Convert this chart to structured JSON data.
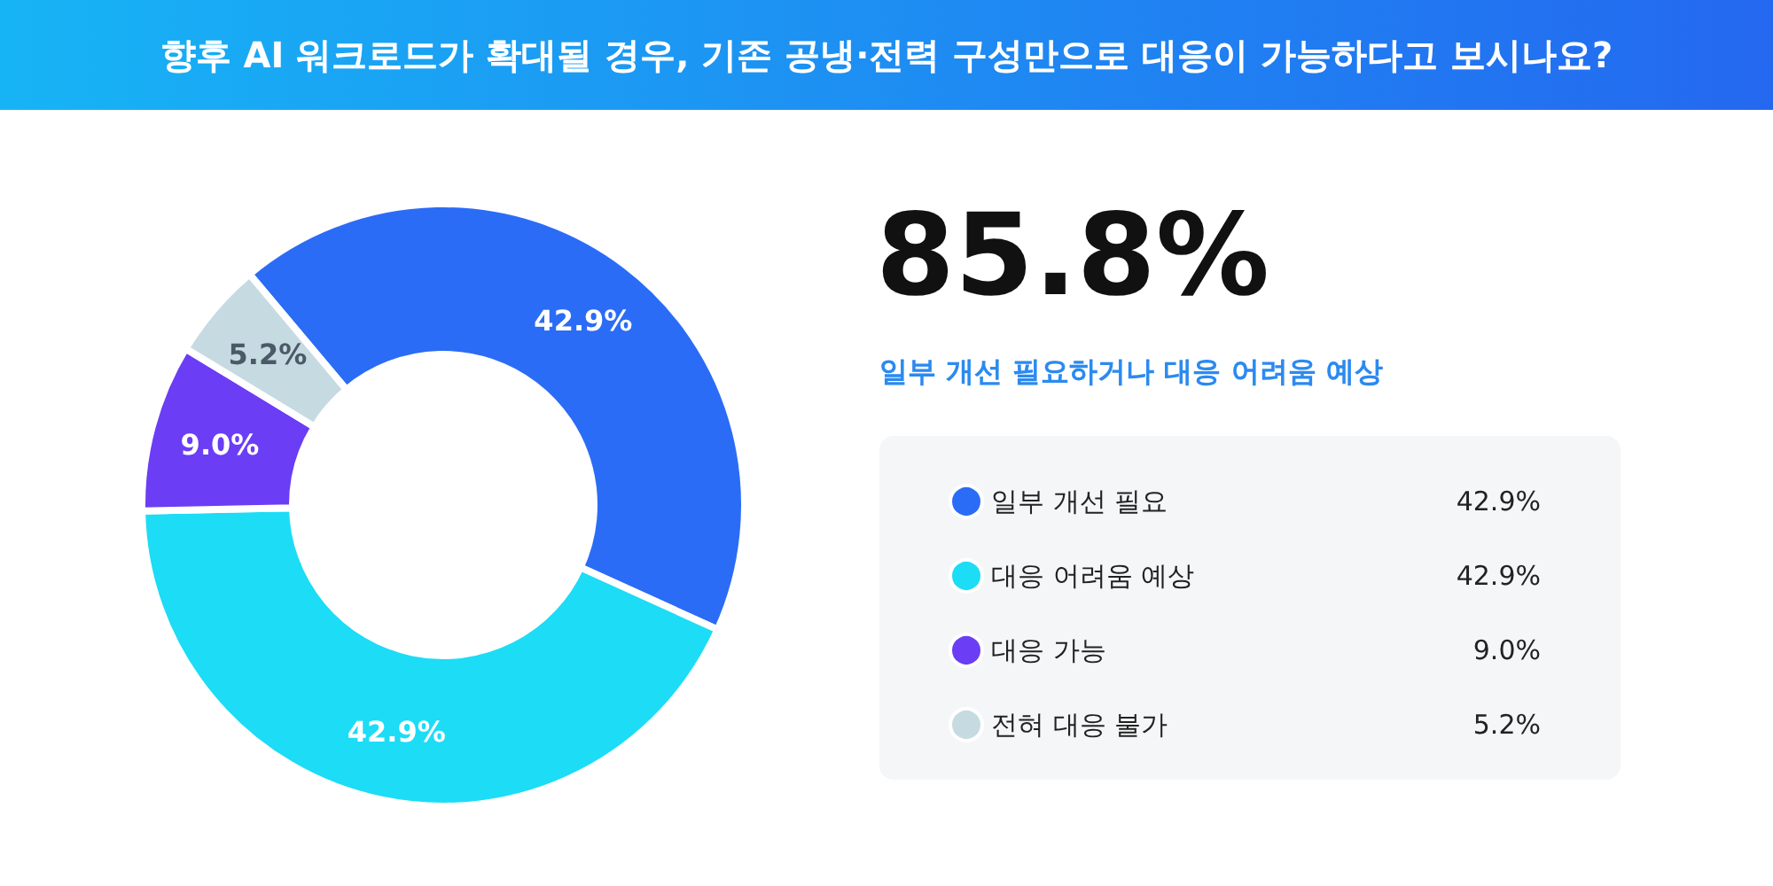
{
  "chart_data": {
    "type": "donut",
    "title": "향후 AI 워크로드가 확대될 경우, 기존 공냉·전력 구성만으로 대응이 가능하다고 보시나요?",
    "annotations": [
      "85.8%",
      "일부 개선 필요하거나 대응 어려움 예상"
    ],
    "categories": [
      "일부 개선 필요",
      "대응 어려움 예상",
      "대응 가능",
      "전혀 대응 불가"
    ],
    "values": [
      42.9,
      42.9,
      9.0,
      5.2
    ],
    "value_labels": [
      "42.9%",
      "42.9%",
      "9.0%",
      "5.2%"
    ],
    "colors": [
      "#2b6cf6",
      "#1cdcf6",
      "#6b3df5",
      "#c6dae2"
    ],
    "legend": "right"
  }
}
